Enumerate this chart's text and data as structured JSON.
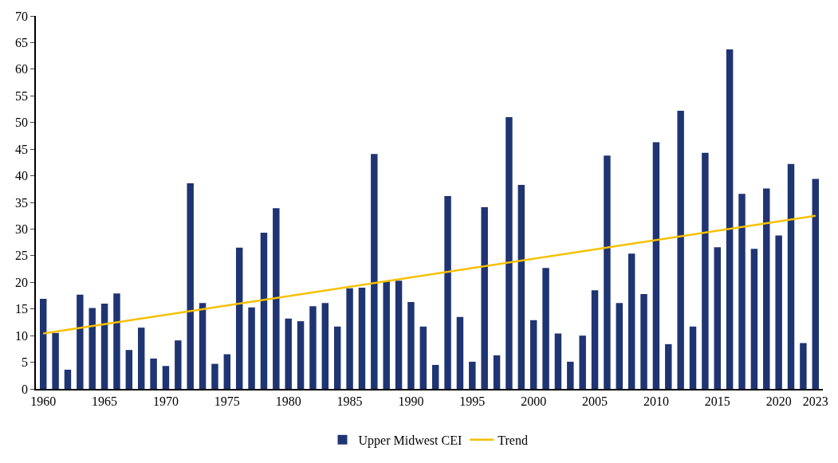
{
  "chart_data": {
    "type": "bar",
    "x": [
      1960,
      1961,
      1962,
      1963,
      1964,
      1965,
      1966,
      1967,
      1968,
      1969,
      1970,
      1971,
      1972,
      1973,
      1974,
      1975,
      1976,
      1977,
      1978,
      1979,
      1980,
      1981,
      1982,
      1983,
      1984,
      1985,
      1986,
      1987,
      1988,
      1989,
      1990,
      1991,
      1992,
      1993,
      1994,
      1995,
      1996,
      1997,
      1998,
      1999,
      2000,
      2001,
      2002,
      2003,
      2004,
      2005,
      2006,
      2007,
      2008,
      2009,
      2010,
      2011,
      2012,
      2013,
      2014,
      2015,
      2016,
      2017,
      2018,
      2019,
      2020,
      2021,
      2022,
      2023
    ],
    "series": [
      {
        "name": "Upper Midwest CEI",
        "color": "#1f3472",
        "values": [
          16.9,
          10.5,
          3.6,
          17.7,
          15.2,
          16.0,
          17.9,
          7.3,
          11.5,
          5.7,
          4.3,
          9.1,
          38.6,
          16.1,
          4.7,
          6.5,
          26.5,
          15.3,
          29.3,
          33.9,
          13.2,
          12.7,
          15.5,
          16.1,
          11.7,
          18.9,
          19.0,
          44.1,
          20.2,
          20.3,
          16.3,
          11.7,
          4.5,
          36.2,
          13.5,
          5.1,
          34.1,
          6.3,
          51.0,
          38.3,
          12.9,
          22.7,
          10.4,
          5.1,
          10.0,
          18.5,
          43.8,
          16.1,
          25.4,
          17.8,
          46.3,
          8.4,
          52.2,
          11.7,
          44.3,
          26.6,
          63.7,
          36.6,
          26.3,
          37.6,
          28.8,
          42.2,
          8.6,
          39.4
        ]
      },
      {
        "name": "Trend",
        "color": "#f5c000",
        "type": "line",
        "x": [
          1960,
          2023
        ],
        "values": [
          10.4,
          32.5
        ]
      }
    ],
    "xlim": [
      1959.4,
      2023.6
    ],
    "xticks": [
      1960,
      1965,
      1970,
      1975,
      1980,
      1985,
      1990,
      1995,
      2000,
      2005,
      2010,
      2015,
      2020,
      2023
    ],
    "ylim": [
      0,
      70
    ],
    "yticks": [
      0,
      5,
      10,
      15,
      20,
      25,
      30,
      35,
      40,
      45,
      50,
      55,
      60,
      65,
      70
    ],
    "legend": "bottom",
    "marker": "none",
    "line_style": "solid"
  }
}
